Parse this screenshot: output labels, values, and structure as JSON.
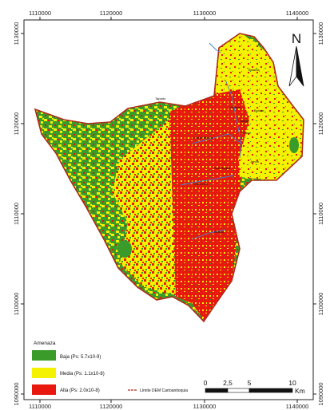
{
  "map": {
    "x_ticks": [
      "1110000",
      "1120000",
      "1130000",
      "1140000"
    ],
    "y_ticks": [
      "1130000",
      "1120000",
      "1110000",
      "1100000",
      "1090000"
    ],
    "places": [
      "Taparto",
      "Betania",
      "Bolívar",
      "Ciudad Bolívar",
      "Salgar",
      "Concordia",
      "Betulia",
      "Andes",
      "Jardín",
      "San Roque",
      "Guarne"
    ],
    "north_label": "N",
    "legend": {
      "title": "Amenaza",
      "items": [
        {
          "label": "Baja (Ps: 5.7x10-9)",
          "color": "#3a9b2a"
        },
        {
          "label": "Media (Ps: 1.1x10-8)",
          "color": "#f4f200"
        },
        {
          "label": "Alta (Ps: 2.0x10-8)",
          "color": "#e8180e"
        }
      ],
      "boundary_label": "Límite DEM Cartoantioquia"
    },
    "scale": {
      "labels": [
        "0",
        "2,5",
        "5",
        "10"
      ],
      "unit": "Km"
    },
    "colors": {
      "low": "#3a9b2a",
      "medium": "#f4f200",
      "high": "#e8180e",
      "boundary": "#b02a1a",
      "river": "#3f7fd0"
    }
  }
}
